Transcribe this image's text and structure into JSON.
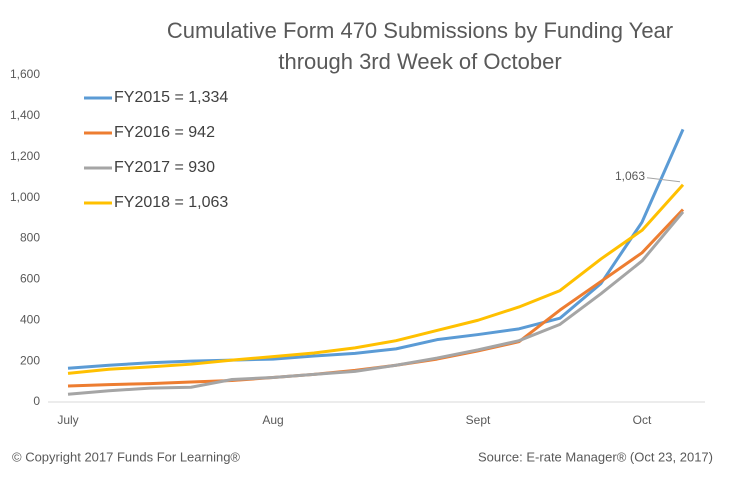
{
  "chart_data": {
    "type": "line",
    "title": [
      "Cumulative Form 470 Submissions by Funding Year",
      "through 3rd Week of October"
    ],
    "categories": [
      "July",
      null,
      null,
      null,
      null,
      "Aug",
      null,
      null,
      null,
      null,
      "Sept",
      null,
      null,
      null,
      "Oct",
      null
    ],
    "series": [
      {
        "name": "FY2015 = 1,334",
        "color": "#5b9bd5",
        "values": [
          165,
          180,
          192,
          200,
          205,
          210,
          225,
          238,
          260,
          305,
          330,
          358,
          410,
          580,
          880,
          1334
        ]
      },
      {
        "name": "FY2016 = 942",
        "color": "#ed7d31",
        "values": [
          78,
          85,
          90,
          98,
          105,
          120,
          135,
          155,
          180,
          210,
          250,
          295,
          450,
          590,
          730,
          942
        ]
      },
      {
        "name": "FY2017 = 930",
        "color": "#a5a5a5",
        "values": [
          38,
          55,
          68,
          72,
          110,
          120,
          135,
          150,
          180,
          215,
          255,
          300,
          380,
          530,
          690,
          930
        ]
      },
      {
        "name": "FY2018 = 1,063",
        "color": "#ffc000",
        "values": [
          140,
          160,
          172,
          185,
          205,
          222,
          240,
          265,
          300,
          350,
          400,
          465,
          545,
          700,
          840,
          1063
        ],
        "value_labels": [
          null,
          null,
          null,
          null,
          null,
          null,
          null,
          null,
          null,
          null,
          null,
          null,
          null,
          null,
          null,
          "1,063"
        ]
      }
    ],
    "ylim": [
      0,
      1600
    ],
    "yticks": [
      0,
      200,
      400,
      600,
      800,
      {
        "value": 1000,
        "label": "1,000"
      },
      {
        "value": 1200,
        "label": "1,200"
      },
      {
        "value": 1400,
        "label": "1,400"
      },
      {
        "value": 1600,
        "label": "1,600"
      }
    ],
    "grid": false,
    "legend": "upper left",
    "footer_left": "© Copyright 2017 Funds For Learning®",
    "footer_right": "Source: E-rate Manager® (Oct 23, 2017)"
  }
}
